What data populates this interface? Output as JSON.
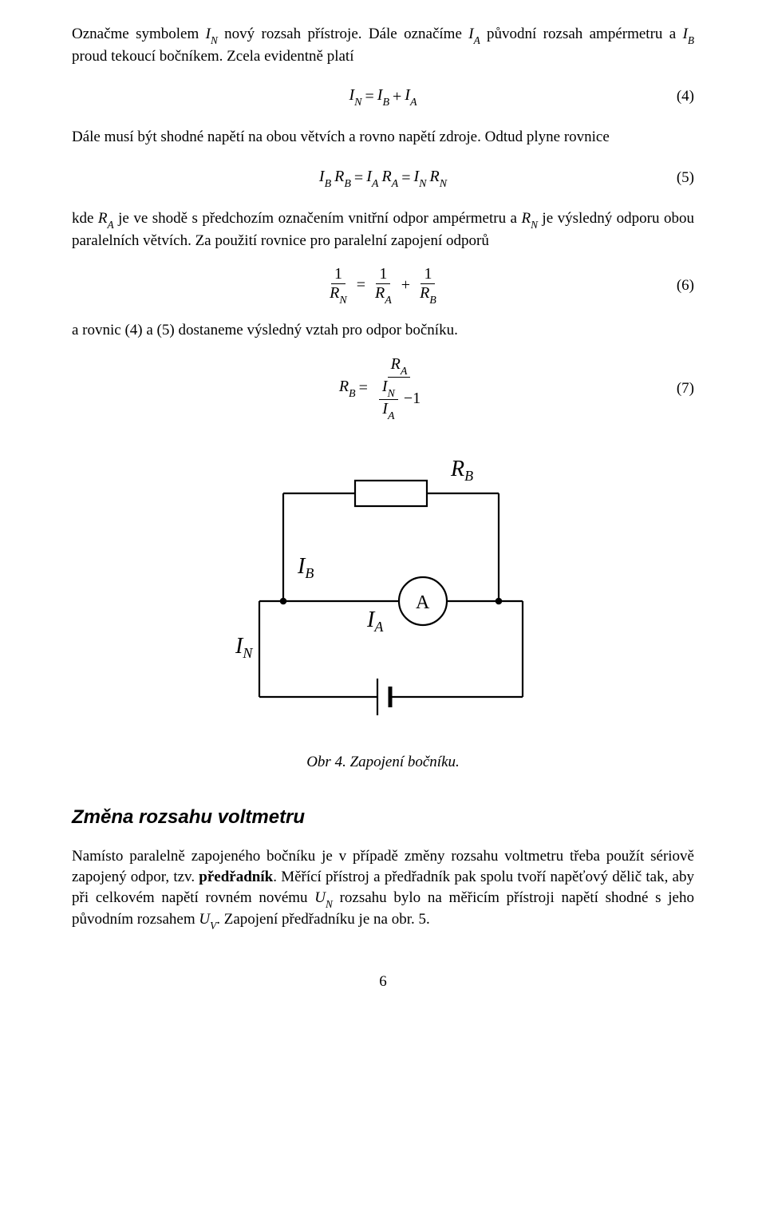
{
  "colors": {
    "text": "#000000",
    "background": "#ffffff",
    "stroke": "#000000"
  },
  "para1_html": "Označme symbolem <span class='it'>I<span class='sub'>N</span></span> nový rozsah přístroje. Dále označíme <span class='it'>I<span class='sub'>A</span></span> původní rozsah ampérmetru a <span class='it'>I<span class='sub'>B</span></span> proud tekoucí bočníkem. Zcela evidentně platí",
  "eq4": {
    "num": "(4)",
    "lhs_I": "I",
    "lhs_sub": "N",
    "eq": "=",
    "t1_I": "I",
    "t1_sub": "B",
    "plus": "+",
    "t2_I": "I",
    "t2_sub": "A"
  },
  "para2_html": "Dále musí být shodné napětí na obou větvích a rovno napětí zdroje. Odtud plyne rovnice",
  "eq5": {
    "num": "(5)",
    "p1_I": "I",
    "p1_Isub": "B",
    "p1_R": "R",
    "p1_Rsub": "B",
    "eq1": "=",
    "p2_I": "I",
    "p2_Isub": "A",
    "p2_R": "R",
    "p2_Rsub": "A",
    "eq2": "=",
    "p3_I": "I",
    "p3_Isub": "N",
    "p3_R": "R",
    "p3_Rsub": "N"
  },
  "para3_html": "kde <span class='it'>R<span class='sub'>A</span></span> je ve shodě s předchozím označením vnitřní odpor ampérmetru a <span class='it'>R<span class='sub'>N</span></span> je výsledný odporu obou paralelních větvích. Za použití rovnice pro paralelní zapojení odporů",
  "eq6": {
    "num": "(6)",
    "one": "1",
    "R": "R",
    "subN": "N",
    "subA": "A",
    "subB": "B",
    "eq": "=",
    "plus": "+"
  },
  "para4": "a rovnic (4) a (5) dostaneme výsledný vztah pro odpor bočníku.",
  "eq7": {
    "num": "(7)",
    "R": "R",
    "I": "I",
    "subB": "B",
    "subA": "A",
    "subN": "N",
    "eq": "=",
    "minus": "−",
    "one": "1"
  },
  "figure": {
    "type": "circuit-diagram",
    "stroke_color": "#000000",
    "stroke_width": 2.2,
    "background": "#ffffff",
    "labels": {
      "RB": "R",
      "RB_sub": "B",
      "IB": "I",
      "IB_sub": "B",
      "IA": "I",
      "IA_sub": "A",
      "IN": "I",
      "IN_sub": "N",
      "A": "A"
    },
    "font_size_main": 28,
    "font_size_ammeter": 24
  },
  "caption": "Obr 4. Zapojení bočníku.",
  "heading": "Změna rozsahu voltmetru",
  "para5_html": "Namísto paralelně zapojeného bočníku je v případě změny rozsahu voltmetru třeba použít sériově zapojený odpor, tzv. <b>předřadník</b>. Měřící přístroj a předřadník pak spolu tvoří napěťový dělič tak, aby při celkovém napětí rovném novému <span class='it'>U<span class='sub'>N</span></span> rozsahu bylo na měřicím přístroji napětí shodné s jeho původním rozsahem <span class='it'>U<span class='sub'>V</span></span>. Zapojení předřadníku je na obr. 5.",
  "page_number": "6"
}
